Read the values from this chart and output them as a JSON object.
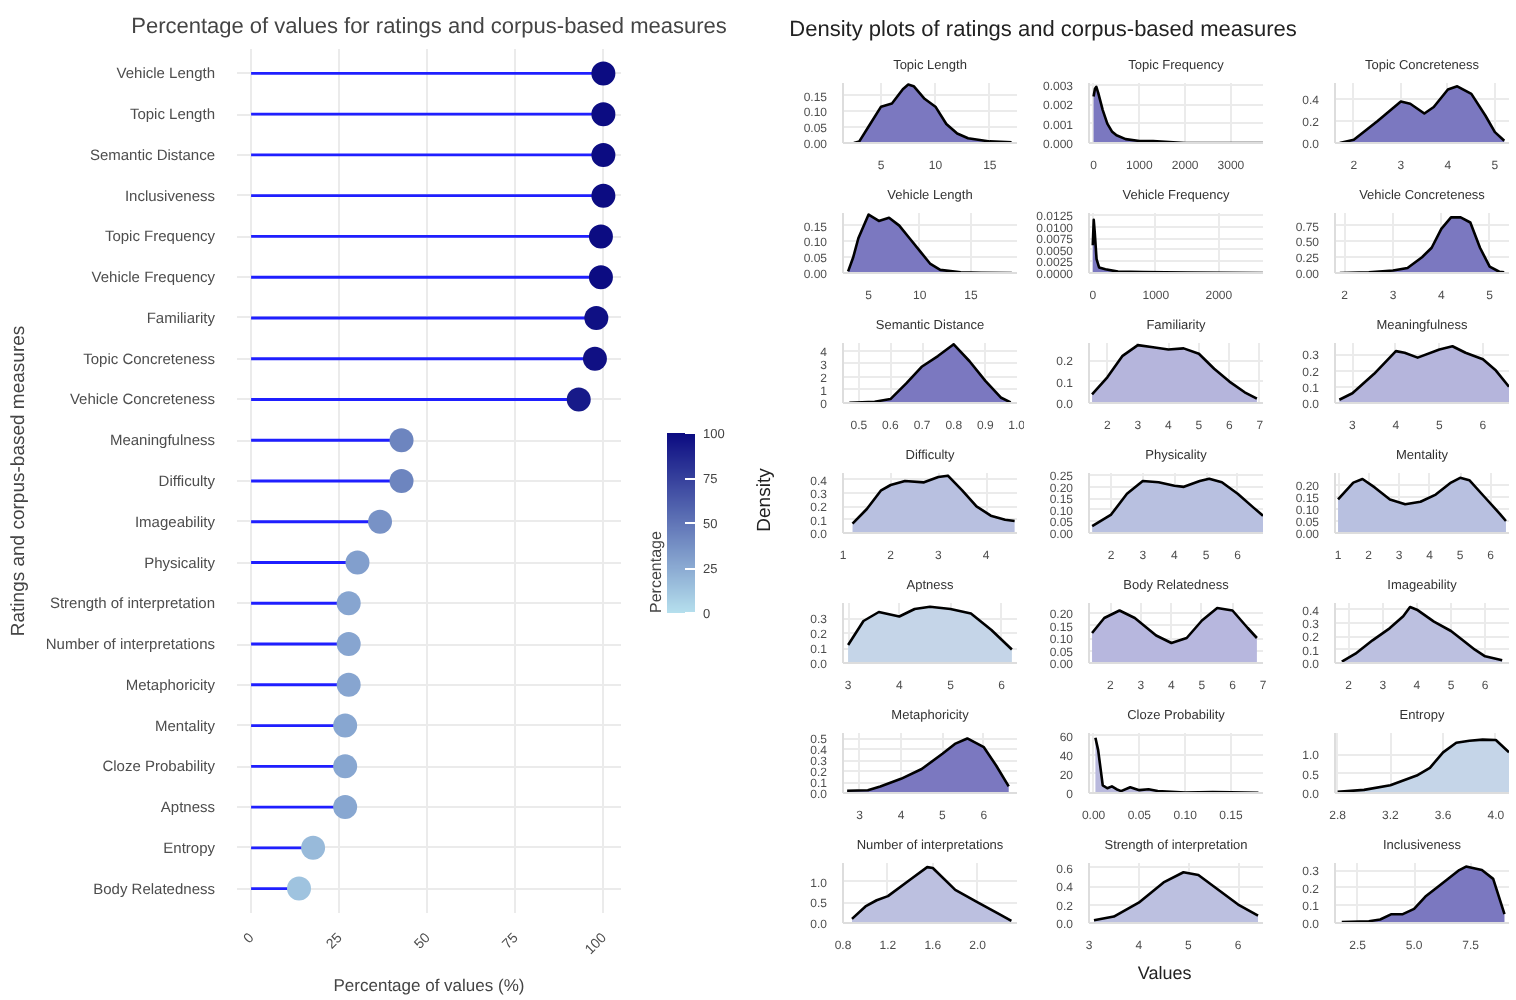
{
  "chart_data": [
    {
      "type": "lollipop",
      "title": "Percentage of values for ratings and corpus-based measures",
      "xlabel": "Percentage of values (%)",
      "ylabel": "Ratings and corpus-based measures",
      "clabel": "Percentage",
      "orientation": "horizontal",
      "categories": [
        "Vehicle Length",
        "Topic Length",
        "Semantic Distance",
        "Inclusiveness",
        "Topic Frequency",
        "Vehicle Frequency",
        "Familiarity",
        "Topic Concreteness",
        "Vehicle Concreteness",
        "Meaningfulness",
        "Difficulty",
        "Imageability",
        "Physicality",
        "Strength of interpretation",
        "Number of interpretations",
        "Metaphoricity",
        "Mentality",
        "Cloze Probability",
        "Aptness",
        "Entropy",
        "Body Relatedness"
      ],
      "values": [
        100,
        100,
        100,
        100,
        99.3,
        99.3,
        98,
        97.6,
        93,
        42.7,
        42.7,
        36.6,
        30.2,
        27.7,
        27.7,
        27.7,
        26.7,
        26.7,
        26.7,
        17.6,
        13.6
      ],
      "cvalues": [
        100,
        100,
        100,
        100,
        99.3,
        99.3,
        98,
        97.6,
        93,
        42.7,
        42.7,
        36.6,
        30.2,
        27.7,
        27.7,
        27.7,
        26.7,
        26.7,
        26.7,
        17.6,
        13.6
      ],
      "marker": "circle",
      "xlim": [
        -4,
        105
      ],
      "xticks": [
        0,
        25,
        50,
        75,
        100
      ],
      "clim": [
        0,
        100
      ],
      "cticks": [
        0,
        25,
        50,
        75,
        100
      ],
      "grid": true
    },
    {
      "type": "other",
      "title": "Density plots of ratings and corpus-based measures",
      "xlabel": "Values",
      "ylabel": "Density"
    },
    {
      "type": "area",
      "title": "Topic Length",
      "color": "#7b78c0",
      "x": [
        2.5,
        3,
        4,
        5,
        6,
        7,
        7.5,
        8,
        9,
        10,
        11,
        12,
        13,
        15,
        17
      ],
      "values": [
        0,
        0.005,
        0.06,
        0.115,
        0.125,
        0.17,
        0.185,
        0.18,
        0.14,
        0.115,
        0.06,
        0.03,
        0.015,
        0.005,
        0.002
      ],
      "xlim": [
        1.5,
        17.5
      ],
      "xticks": [
        5,
        10,
        15
      ],
      "ylim": [
        0,
        0.19
      ],
      "yticks": [
        {
          "value": 0,
          "label": "0.00"
        },
        0.05,
        {
          "value": 0.1,
          "label": "0.10"
        },
        0.15
      ],
      "grid": true
    },
    {
      "type": "area",
      "title": "Topic Frequency",
      "color": "#7b78c0",
      "x": [
        0,
        30,
        60,
        100,
        200,
        300,
        400,
        500,
        700,
        1000,
        1150,
        1300,
        2000,
        3000,
        3700
      ],
      "values": [
        0.0024,
        0.0028,
        0.0029,
        0.0026,
        0.0017,
        0.001,
        0.0006,
        0.0004,
        0.0002,
        0.0001,
        0.0001,
        0.0001,
        0,
        0,
        0
      ],
      "xlim": [
        -100,
        3700
      ],
      "xticks": [
        0,
        1000,
        2000,
        3000
      ],
      "ylim": [
        0,
        0.0031
      ],
      "yticks": [
        {
          "value": 0,
          "label": "0.000"
        },
        0.001,
        0.002,
        0.003
      ],
      "grid": true
    },
    {
      "type": "area",
      "title": "Topic Concreteness",
      "color": "#7b78c0",
      "x": [
        1.7,
        2,
        2.5,
        3,
        3.2,
        3.5,
        3.7,
        4,
        4.2,
        4.5,
        4.8,
        5,
        5.2
      ],
      "values": [
        0,
        0.03,
        0.2,
        0.38,
        0.36,
        0.27,
        0.33,
        0.49,
        0.52,
        0.45,
        0.25,
        0.1,
        0.02
      ],
      "xlim": [
        1.6,
        5.3
      ],
      "xticks": [
        2,
        3,
        4,
        5
      ],
      "ylim": [
        0,
        0.55
      ],
      "yticks": [
        {
          "value": 0,
          "label": "0.0"
        },
        0.2,
        0.4
      ],
      "grid": true
    },
    {
      "type": "area",
      "title": "Vehicle Length",
      "color": "#7b78c0",
      "x": [
        3,
        3.5,
        4,
        5,
        6,
        7,
        8,
        9,
        10,
        11,
        12,
        14,
        16,
        19
      ],
      "values": [
        0.005,
        0.05,
        0.11,
        0.185,
        0.165,
        0.175,
        0.15,
        0.11,
        0.07,
        0.03,
        0.01,
        0.002,
        0.001,
        0
      ],
      "xlim": [
        2.5,
        19.5
      ],
      "xticks": [
        5,
        10,
        15
      ],
      "ylim": [
        0,
        0.19
      ],
      "yticks": [
        {
          "value": 0,
          "label": "0.00"
        },
        0.05,
        {
          "value": 0.1,
          "label": "0.10"
        },
        0.15
      ],
      "grid": true
    },
    {
      "type": "area",
      "title": "Vehicle Frequency",
      "color": "#7b78c0",
      "x": [
        0,
        15,
        30,
        60,
        100,
        200,
        400,
        800,
        1500,
        2700
      ],
      "values": [
        0.006,
        0.0115,
        0.009,
        0.003,
        0.0012,
        0.0008,
        0.0003,
        0.0002,
        0.0001,
        0
      ],
      "xlim": [
        -60,
        2700
      ],
      "xticks": [
        0,
        1000,
        2000
      ],
      "ylim": [
        0,
        0.013
      ],
      "yticks": [
        {
          "value": 0,
          "label": "0.0000"
        },
        0.0025,
        {
          "value": 0.005,
          "label": "0.0050"
        },
        0.0075,
        {
          "value": 0.01,
          "label": "0.0100"
        },
        0.0125
      ],
      "grid": true
    },
    {
      "type": "area",
      "title": "Vehicle Concreteness",
      "color": "#7b78c0",
      "x": [
        1.9,
        2.5,
        3,
        3.3,
        3.6,
        3.8,
        4,
        4.2,
        4.4,
        4.6,
        4.8,
        5,
        5.2,
        5.3
      ],
      "values": [
        0,
        0.01,
        0.04,
        0.08,
        0.25,
        0.4,
        0.7,
        0.88,
        0.88,
        0.8,
        0.4,
        0.1,
        0.02,
        0.01
      ],
      "xlim": [
        1.8,
        5.4
      ],
      "xticks": [
        2,
        3,
        4,
        5
      ],
      "ylim": [
        0,
        0.95
      ],
      "yticks": [
        {
          "value": 0,
          "label": "0.00"
        },
        0.25,
        {
          "value": 0.5,
          "label": "0.50"
        },
        0.75
      ],
      "grid": true
    },
    {
      "type": "area",
      "title": "Semantic Distance",
      "color": "#7b78c0",
      "x": [
        0.47,
        0.55,
        0.6,
        0.65,
        0.7,
        0.75,
        0.8,
        0.85,
        0.9,
        0.95,
        0.98
      ],
      "values": [
        0.02,
        0.1,
        0.3,
        1.5,
        2.8,
        3.6,
        4.5,
        3.2,
        1.7,
        0.4,
        0.05
      ],
      "xlim": [
        0.45,
        1.0
      ],
      "xticks": [
        0.5,
        0.6,
        0.7,
        0.8,
        0.9,
        {
          "value": 1,
          "label": "1.0"
        }
      ],
      "ylim": [
        0,
        4.6
      ],
      "yticks": [
        0,
        1,
        2,
        3,
        4
      ],
      "grid": true
    },
    {
      "type": "area",
      "title": "Familiarity",
      "color": "#b5b5dc",
      "x": [
        1.5,
        2,
        2.5,
        3,
        3.5,
        4,
        4.5,
        5,
        5.5,
        6,
        6.5,
        6.9
      ],
      "values": [
        0.04,
        0.12,
        0.22,
        0.27,
        0.26,
        0.25,
        0.255,
        0.23,
        0.16,
        0.1,
        0.05,
        0.02
      ],
      "xlim": [
        1.4,
        7.1
      ],
      "xticks": [
        2,
        3,
        4,
        5,
        6,
        7
      ],
      "ylim": [
        0,
        0.28
      ],
      "yticks": [
        {
          "value": 0,
          "label": "0.0"
        },
        0.1,
        0.2
      ],
      "grid": true
    },
    {
      "type": "area",
      "title": "Meaningfulness",
      "color": "#b5b5dc",
      "x": [
        2.7,
        3,
        3.5,
        4,
        4.2,
        4.5,
        5,
        5.3,
        5.6,
        6,
        6.3,
        6.6
      ],
      "values": [
        0.02,
        0.06,
        0.18,
        0.32,
        0.31,
        0.28,
        0.33,
        0.35,
        0.31,
        0.27,
        0.2,
        0.1
      ],
      "xlim": [
        2.6,
        6.6
      ],
      "xticks": [
        3,
        4,
        5,
        6
      ],
      "ylim": [
        0,
        0.37
      ],
      "yticks": [
        {
          "value": 0,
          "label": "0.0"
        },
        0.1,
        0.2,
        0.3
      ],
      "grid": true
    },
    {
      "type": "area",
      "title": "Difficulty",
      "color": "#b8c0e0",
      "x": [
        1.2,
        1.5,
        1.8,
        2,
        2.3,
        2.7,
        3,
        3.2,
        3.5,
        3.8,
        4.1,
        4.4,
        4.6
      ],
      "values": [
        0.07,
        0.18,
        0.32,
        0.36,
        0.39,
        0.38,
        0.42,
        0.43,
        0.32,
        0.2,
        0.13,
        0.1,
        0.09
      ],
      "xlim": [
        1,
        4.65
      ],
      "xticks": [
        1,
        2,
        3,
        4
      ],
      "ylim": [
        0,
        0.45
      ],
      "yticks": [
        {
          "value": 0,
          "label": "0.0"
        },
        0.1,
        0.2,
        0.3,
        0.4
      ],
      "grid": true
    },
    {
      "type": "area",
      "title": "Physicality",
      "color": "#b8c0e0",
      "x": [
        1.4,
        2,
        2.5,
        3,
        3.5,
        4,
        4.3,
        4.8,
        5.1,
        5.5,
        6,
        6.5,
        6.8
      ],
      "values": [
        0.03,
        0.08,
        0.17,
        0.225,
        0.22,
        0.205,
        0.2,
        0.225,
        0.235,
        0.22,
        0.17,
        0.11,
        0.075
      ],
      "xlim": [
        1.3,
        6.8
      ],
      "xticks": [
        2,
        3,
        4,
        5,
        6
      ],
      "ylim": [
        0,
        0.26
      ],
      "yticks": [
        {
          "value": 0,
          "label": "0.00"
        },
        0.05,
        {
          "value": 0.1,
          "label": "0.10"
        },
        0.15,
        {
          "value": 0.2,
          "label": "0.20"
        },
        0.25
      ],
      "grid": true
    },
    {
      "type": "area",
      "title": "Mentality",
      "color": "#b8c0e0",
      "x": [
        1,
        1.5,
        1.8,
        2.2,
        2.7,
        3.2,
        3.7,
        4.2,
        4.7,
        5,
        5.3,
        5.8,
        6.3,
        6.5
      ],
      "values": [
        0.14,
        0.21,
        0.225,
        0.19,
        0.14,
        0.12,
        0.13,
        0.16,
        0.21,
        0.23,
        0.22,
        0.15,
        0.08,
        0.05
      ],
      "xlim": [
        0.9,
        6.6
      ],
      "xticks": [
        1,
        2,
        3,
        4,
        5,
        6
      ],
      "ylim": [
        0,
        0.25
      ],
      "yticks": [
        {
          "value": 0,
          "label": "0.00"
        },
        0.05,
        {
          "value": 0.1,
          "label": "0.10"
        },
        0.15,
        {
          "value": 0.2,
          "label": "0.20"
        }
      ],
      "grid": true
    },
    {
      "type": "area",
      "title": "Aptness",
      "color": "#c5d5e8",
      "x": [
        3,
        3.3,
        3.6,
        4,
        4.3,
        4.6,
        5,
        5.4,
        5.8,
        6.2
      ],
      "values": [
        0.12,
        0.28,
        0.34,
        0.31,
        0.36,
        0.375,
        0.36,
        0.33,
        0.22,
        0.09
      ],
      "xlim": [
        2.9,
        6.3
      ],
      "xticks": [
        3,
        4,
        5,
        6
      ],
      "ylim": [
        0,
        0.4
      ],
      "yticks": [
        {
          "value": 0,
          "label": "0.0"
        },
        0.1,
        0.2,
        0.3
      ],
      "grid": true
    },
    {
      "type": "area",
      "title": "Body Relatedness",
      "color": "#b7b7de",
      "x": [
        1.4,
        1.8,
        2.3,
        2.8,
        3.5,
        4,
        4.5,
        5,
        5.5,
        6,
        6.5,
        6.8
      ],
      "values": [
        0.12,
        0.18,
        0.21,
        0.18,
        0.11,
        0.08,
        0.1,
        0.17,
        0.22,
        0.21,
        0.14,
        0.1
      ],
      "xlim": [
        1.3,
        7
      ],
      "xticks": [
        2,
        3,
        4,
        5,
        6,
        7
      ],
      "ylim": [
        0,
        0.24
      ],
      "yticks": [
        {
          "value": 0,
          "label": "0.00"
        },
        0.05,
        {
          "value": 0.1,
          "label": "0.10"
        },
        0.15,
        {
          "value": 0.2,
          "label": "0.20"
        }
      ],
      "grid": true
    },
    {
      "type": "area",
      "title": "Imageability",
      "color": "#bcc0e0",
      "x": [
        1.8,
        2.2,
        2.7,
        3.2,
        3.6,
        3.8,
        4,
        4.5,
        5,
        5.3,
        5.7,
        6,
        6.5
      ],
      "values": [
        0.01,
        0.07,
        0.17,
        0.26,
        0.35,
        0.42,
        0.4,
        0.31,
        0.24,
        0.18,
        0.1,
        0.05,
        0.02
      ],
      "xlim": [
        1.6,
        6.7
      ],
      "xticks": [
        2,
        3,
        4,
        5,
        6
      ],
      "ylim": [
        0,
        0.45
      ],
      "yticks": [
        {
          "value": 0,
          "label": "0.0"
        },
        0.1,
        0.2,
        0.3,
        0.4
      ],
      "grid": true
    },
    {
      "type": "area",
      "title": "Metaphoricity",
      "color": "#7b78c0",
      "x": [
        2.7,
        3.2,
        3.5,
        4,
        4.5,
        5,
        5.3,
        5.6,
        6,
        6.3,
        6.6
      ],
      "values": [
        0.02,
        0.025,
        0.06,
        0.13,
        0.22,
        0.36,
        0.45,
        0.5,
        0.42,
        0.25,
        0.06
      ],
      "xlim": [
        2.6,
        6.8
      ],
      "xticks": [
        3,
        4,
        5,
        6
      ],
      "ylim": [
        0,
        0.55
      ],
      "yticks": [
        {
          "value": 0,
          "label": "0.0"
        },
        0.1,
        0.2,
        0.3,
        0.4,
        0.5
      ],
      "grid": true
    },
    {
      "type": "area",
      "title": "Cloze Probability",
      "color": "#b9b9dd",
      "x": [
        0.002,
        0.005,
        0.01,
        0.015,
        0.02,
        0.025,
        0.03,
        0.04,
        0.05,
        0.06,
        0.07,
        0.08,
        0.1,
        0.13,
        0.15,
        0.18
      ],
      "values": [
        58,
        45,
        8,
        5,
        7,
        4,
        2,
        6,
        3,
        4,
        2,
        1.5,
        0.5,
        1,
        0.8,
        0.3
      ],
      "xlim": [
        -0.005,
        0.185
      ],
      "xticks": [
        {
          "value": 0,
          "label": "0.00"
        },
        0.05,
        {
          "value": 0.1,
          "label": "0.10"
        },
        0.15
      ],
      "ylim": [
        0,
        63
      ],
      "yticks": [
        0,
        20,
        40,
        60
      ],
      "grid": true
    },
    {
      "type": "area",
      "title": "Entropy",
      "color": "#c5d5e8",
      "x": [
        2.8,
        3,
        3.2,
        3.4,
        3.5,
        3.6,
        3.7,
        3.8,
        3.9,
        4,
        4.1
      ],
      "values": [
        0.03,
        0.08,
        0.2,
        0.45,
        0.65,
        1.05,
        1.3,
        1.35,
        1.38,
        1.37,
        1.05
      ],
      "xlim": [
        2.78,
        4.1
      ],
      "xticks": [
        2.8,
        3.2,
        3.6,
        {
          "value": 4,
          "label": "4.0"
        }
      ],
      "ylim": [
        0,
        1.55
      ],
      "yticks": [
        {
          "value": 0,
          "label": "0.0"
        },
        0.5,
        {
          "value": 1,
          "label": "1.0"
        }
      ],
      "grid": true
    },
    {
      "type": "area",
      "title": "Number of interpretations",
      "color": "#bcc0e0",
      "x": [
        0.88,
        1,
        1.1,
        1.2,
        1.4,
        1.55,
        1.6,
        1.8,
        2,
        2.2,
        2.3
      ],
      "values": [
        0.1,
        0.4,
        0.55,
        0.65,
        1.05,
        1.35,
        1.33,
        0.8,
        0.5,
        0.2,
        0.05
      ],
      "xlim": [
        0.8,
        2.35
      ],
      "xticks": [
        0.8,
        1.2,
        1.6,
        {
          "value": 2,
          "label": "2.0"
        }
      ],
      "ylim": [
        0,
        1.45
      ],
      "yticks": [
        {
          "value": 0,
          "label": "0.0"
        },
        0.5,
        {
          "value": 1,
          "label": "1.0"
        }
      ],
      "grid": true
    },
    {
      "type": "area",
      "title": "Strength of interpretation",
      "color": "#bcc0e0",
      "x": [
        3.1,
        3.5,
        4,
        4.5,
        4.9,
        5.2,
        5.6,
        6,
        6.4
      ],
      "values": [
        0.03,
        0.07,
        0.22,
        0.44,
        0.55,
        0.52,
        0.36,
        0.2,
        0.08
      ],
      "xlim": [
        3,
        6.5
      ],
      "xticks": [
        3,
        4,
        5,
        6
      ],
      "ylim": [
        0,
        0.65
      ],
      "yticks": [
        {
          "value": 0,
          "label": "0.0"
        },
        0.2,
        0.4,
        0.6
      ],
      "grid": true
    },
    {
      "type": "area",
      "title": "Inclusiveness",
      "color": "#7b78c0",
      "x": [
        1.8,
        3,
        3.5,
        4,
        4.5,
        5,
        5.5,
        6,
        7,
        7.3,
        8,
        8.5,
        9
      ],
      "values": [
        0.005,
        0.01,
        0.02,
        0.05,
        0.05,
        0.08,
        0.15,
        0.2,
        0.3,
        0.32,
        0.3,
        0.25,
        0.05
      ],
      "xlim": [
        1.5,
        9.2
      ],
      "xticks": [
        2.5,
        {
          "value": 5,
          "label": "5.0"
        },
        7.5
      ],
      "ylim": [
        0,
        0.34
      ],
      "yticks": [
        {
          "value": 0,
          "label": "0.0"
        },
        0.1,
        0.2,
        0.3
      ],
      "grid": true
    }
  ]
}
